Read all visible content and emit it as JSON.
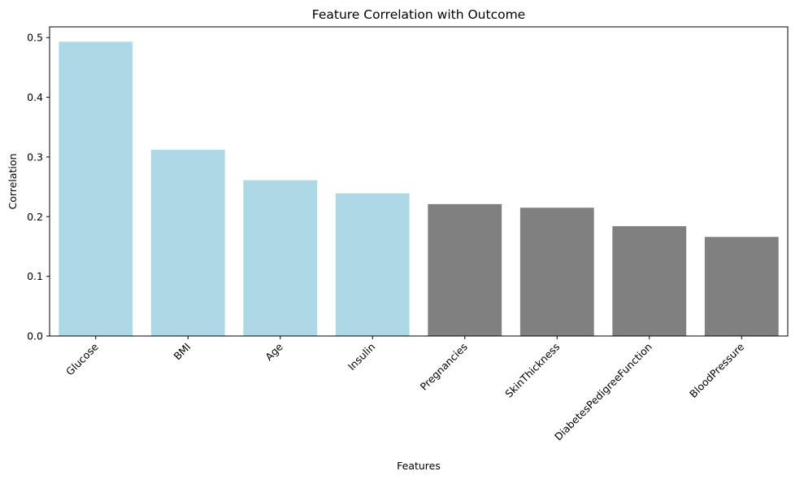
{
  "chart_data": {
    "type": "bar",
    "title": "Feature Correlation with Outcome",
    "xlabel": "Features",
    "ylabel": "Correlation",
    "categories": [
      "Glucose",
      "BMI",
      "Age",
      "Insulin",
      "Pregnancies",
      "SkinThickness",
      "DiabetesPedigreeFunction",
      "BloodPressure"
    ],
    "values": [
      0.493,
      0.312,
      0.261,
      0.239,
      0.221,
      0.215,
      0.184,
      0.166
    ],
    "bar_colors": [
      "#add8e6",
      "#add8e6",
      "#add8e6",
      "#add8e6",
      "#808080",
      "#808080",
      "#808080",
      "#808080"
    ],
    "ylim": [
      0,
      0.518
    ],
    "yticks": [
      0.0,
      0.1,
      0.2,
      0.3,
      0.4,
      0.5
    ],
    "ytick_labels": [
      "0.0",
      "0.1",
      "0.2",
      "0.3",
      "0.4",
      "0.5"
    ],
    "grid": false,
    "legend": "none"
  }
}
